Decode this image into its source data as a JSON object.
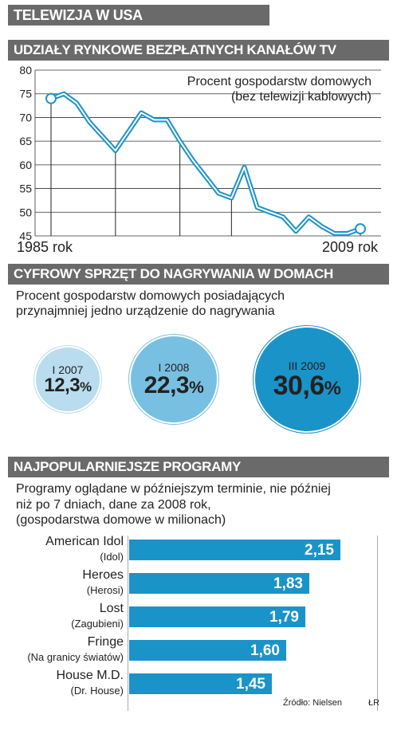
{
  "header": {
    "title": "TELEWIZJA W USA"
  },
  "chart_data": [
    {
      "type": "line",
      "title": "UDZIAŁY RYNKOWE BEZPŁATNYCH KANAŁÓW TV",
      "subtitle_line1": "Procent gospodarstw domowych",
      "subtitle_line2": "(bez telewizji kablowych)",
      "x_start_label": "1985 rok",
      "x_end_label": "2009 rok",
      "x": [
        1985,
        1986,
        1987,
        1988,
        1989,
        1990,
        1991,
        1992,
        1993,
        1994,
        1995,
        1996,
        1997,
        1998,
        1999,
        2000,
        2001,
        2002,
        2003,
        2004,
        2005,
        2006,
        2007,
        2008,
        2009
      ],
      "y": [
        74,
        75,
        73,
        69,
        66,
        63,
        67,
        71,
        69.5,
        69.5,
        65,
        61,
        57.5,
        54,
        53,
        59.5,
        51,
        50,
        49,
        46,
        49,
        47,
        45.5,
        45.5,
        46.5
      ],
      "yticks": [
        80,
        75,
        70,
        65,
        60,
        55,
        50,
        45
      ],
      "ylim": [
        45,
        80
      ],
      "grid_lines_at_x": [
        1985,
        1990,
        1995,
        1999,
        2009
      ]
    },
    {
      "type": "bubble",
      "title": "CYFROWY SPRZĘT DO NAGRYWANIA W DOMACH",
      "subtitle_line1": "Procent gospodarstw domowych posiadających",
      "subtitle_line2": "przynajmniej jedno urządzenie do nagrywania",
      "items": [
        {
          "period": "I 2007",
          "value": "12,3",
          "unit": "%",
          "fraction": 0.123,
          "color": "#b9dcef",
          "text_color": "#222222"
        },
        {
          "period": "I 2008",
          "value": "22,3",
          "unit": "%",
          "fraction": 0.223,
          "color": "#78c0e2",
          "text_color": "#222222"
        },
        {
          "period": "III 2009",
          "value": "30,6",
          "unit": "%",
          "fraction": 0.306,
          "color": "#1a93c8",
          "text_color": "#222222"
        }
      ]
    },
    {
      "type": "bar",
      "orientation": "horizontal",
      "title": "NAJPOPULARNIEJSZE PROGRAMY",
      "subtitle_line1": "Programy oglądane w późniejszym terminie, nie później",
      "subtitle_line2": "niż po 7 dniach, dane za 2008 rok,",
      "subtitle_line3": "(gospodarstwa domowe w milionach)",
      "bars": [
        {
          "name": "American Idol",
          "sub": "(Idol)",
          "value": 2.15,
          "label": "2,15"
        },
        {
          "name": "Heroes",
          "sub": "(Herosi)",
          "value": 1.83,
          "label": "1,83"
        },
        {
          "name": "Lost",
          "sub": "(Zagubieni)",
          "value": 1.79,
          "label": "1,79"
        },
        {
          "name": "Fringe",
          "sub": "(Na granicy światów)",
          "value": 1.6,
          "label": "1,60"
        },
        {
          "name": "House M.D.",
          "sub": "(Dr. House)",
          "value": 1.45,
          "label": "1,45"
        }
      ],
      "bar_color": "#1a93c8"
    }
  ],
  "footer": {
    "source": "Źródło: Nielsen",
    "author": "ŁR"
  }
}
